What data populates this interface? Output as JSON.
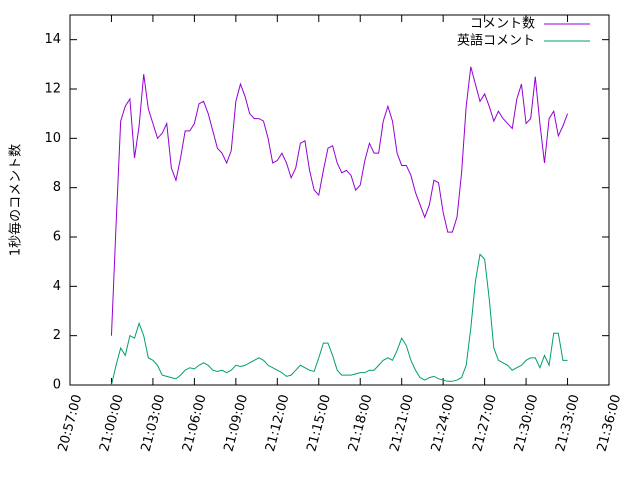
{
  "chart_data": {
    "type": "line",
    "ylabel": "1秒毎のコメント数",
    "xlim": [
      "20:57:00",
      "21:36:00"
    ],
    "xticks": [
      "20:57:00",
      "21:00:00",
      "21:03:00",
      "21:06:00",
      "21:09:00",
      "21:12:00",
      "21:15:00",
      "21:18:00",
      "21:21:00",
      "21:24:00",
      "21:27:00",
      "21:30:00",
      "21:33:00",
      "21:36:00"
    ],
    "ylim": [
      0,
      15
    ],
    "yticks": [
      0,
      2,
      4,
      6,
      8,
      10,
      12,
      14
    ],
    "grid": false,
    "legend": "top-right",
    "x": [
      "21:00:00",
      "21:00:20",
      "21:00:40",
      "21:01:00",
      "21:01:20",
      "21:01:40",
      "21:02:00",
      "21:02:20",
      "21:02:40",
      "21:03:00",
      "21:03:20",
      "21:03:40",
      "21:04:00",
      "21:04:20",
      "21:04:40",
      "21:05:00",
      "21:05:20",
      "21:05:40",
      "21:06:00",
      "21:06:20",
      "21:06:40",
      "21:07:00",
      "21:07:20",
      "21:07:40",
      "21:08:00",
      "21:08:20",
      "21:08:40",
      "21:09:00",
      "21:09:20",
      "21:09:40",
      "21:10:00",
      "21:10:20",
      "21:10:40",
      "21:11:00",
      "21:11:20",
      "21:11:40",
      "21:12:00",
      "21:12:20",
      "21:12:40",
      "21:13:00",
      "21:13:20",
      "21:13:40",
      "21:14:00",
      "21:14:20",
      "21:14:40",
      "21:15:00",
      "21:15:20",
      "21:15:40",
      "21:16:00",
      "21:16:20",
      "21:16:40",
      "21:17:00",
      "21:17:20",
      "21:17:40",
      "21:18:00",
      "21:18:20",
      "21:18:40",
      "21:19:00",
      "21:19:20",
      "21:19:40",
      "21:20:00",
      "21:20:20",
      "21:20:40",
      "21:21:00",
      "21:21:20",
      "21:21:40",
      "21:22:00",
      "21:22:20",
      "21:22:40",
      "21:23:00",
      "21:23:20",
      "21:23:40",
      "21:24:00",
      "21:24:20",
      "21:24:40",
      "21:25:00",
      "21:25:20",
      "21:25:40",
      "21:26:00",
      "21:26:20",
      "21:26:40",
      "21:27:00",
      "21:27:20",
      "21:27:40",
      "21:28:00",
      "21:28:20",
      "21:28:40",
      "21:29:00",
      "21:29:20",
      "21:29:40",
      "21:30:00",
      "21:30:20",
      "21:30:40",
      "21:31:00",
      "21:31:20",
      "21:31:40",
      "21:32:00",
      "21:32:20",
      "21:32:40",
      "21:33:00"
    ],
    "series": [
      {
        "name": "コメント数",
        "color": "#9400d3",
        "values": [
          2.0,
          6.5,
          10.7,
          11.3,
          11.6,
          9.2,
          10.5,
          12.6,
          11.2,
          10.6,
          10.0,
          10.2,
          10.6,
          8.8,
          8.3,
          9.2,
          10.3,
          10.3,
          10.6,
          11.4,
          11.5,
          11.0,
          10.3,
          9.6,
          9.4,
          9.0,
          9.5,
          11.5,
          12.2,
          11.7,
          11.0,
          10.8,
          10.8,
          10.7,
          10.0,
          9.0,
          9.1,
          9.4,
          9.0,
          8.4,
          8.8,
          9.8,
          9.9,
          8.7,
          7.9,
          7.7,
          8.7,
          9.6,
          9.7,
          9.0,
          8.6,
          8.7,
          8.5,
          7.9,
          8.1,
          9.1,
          9.8,
          9.4,
          9.4,
          10.7,
          11.3,
          10.7,
          9.4,
          8.9,
          8.9,
          8.5,
          7.8,
          7.3,
          6.8,
          7.3,
          8.3,
          8.2,
          7.0,
          6.2,
          6.2,
          6.8,
          8.6,
          11.3,
          12.9,
          12.2,
          11.5,
          11.8,
          11.3,
          10.7,
          11.1,
          10.8,
          10.6,
          10.4,
          11.6,
          12.2,
          10.6,
          10.8,
          12.5,
          10.6,
          9.0,
          10.8,
          11.1,
          10.1,
          10.5,
          11.0
        ]
      },
      {
        "name": "英語コメント",
        "color": "#009e73",
        "values": [
          0.0,
          0.8,
          1.5,
          1.2,
          2.0,
          1.9,
          2.5,
          2.0,
          1.1,
          1.0,
          0.8,
          0.4,
          0.35,
          0.3,
          0.25,
          0.4,
          0.6,
          0.7,
          0.65,
          0.8,
          0.9,
          0.8,
          0.6,
          0.55,
          0.6,
          0.5,
          0.6,
          0.8,
          0.75,
          0.8,
          0.9,
          1.0,
          1.1,
          1.0,
          0.8,
          0.7,
          0.6,
          0.5,
          0.35,
          0.4,
          0.6,
          0.8,
          0.7,
          0.6,
          0.55,
          1.1,
          1.7,
          1.7,
          1.2,
          0.6,
          0.4,
          0.4,
          0.4,
          0.45,
          0.5,
          0.5,
          0.6,
          0.6,
          0.8,
          1.0,
          1.1,
          1.0,
          1.4,
          1.9,
          1.6,
          1.0,
          0.6,
          0.3,
          0.2,
          0.3,
          0.35,
          0.25,
          0.2,
          0.15,
          0.15,
          0.2,
          0.3,
          0.8,
          2.3,
          4.2,
          5.3,
          5.1,
          3.5,
          1.5,
          1.0,
          0.9,
          0.8,
          0.6,
          0.7,
          0.8,
          1.0,
          1.1,
          1.1,
          0.7,
          1.2,
          0.8,
          2.1,
          2.1,
          1.0,
          1.0
        ]
      }
    ]
  }
}
